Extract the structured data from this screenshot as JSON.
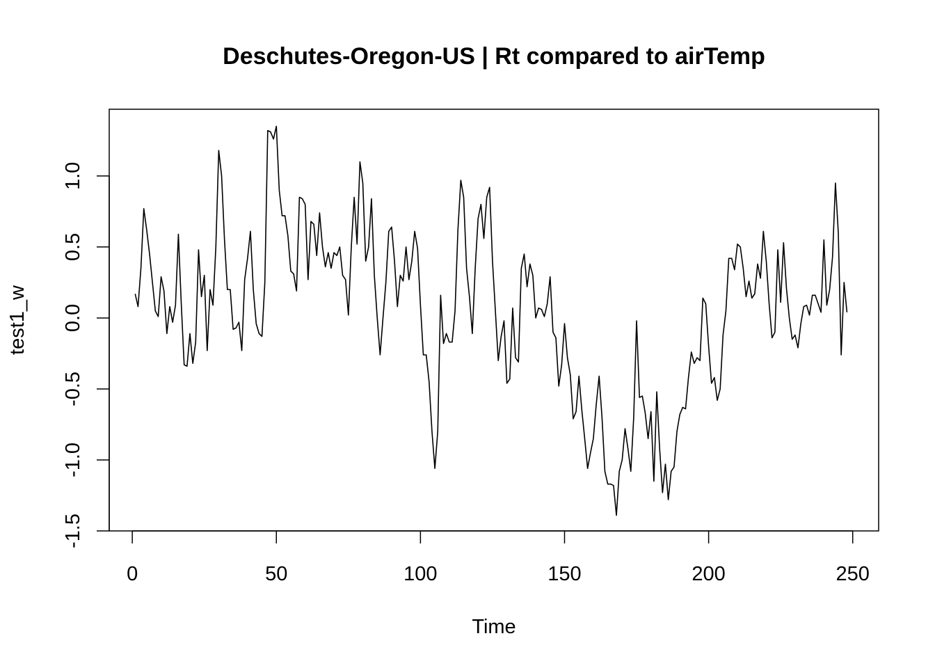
{
  "chart_data": {
    "type": "line",
    "title": "Deschutes-Oregon-US | Rt compared to airTemp",
    "xlabel": "Time",
    "ylabel": "test1_w",
    "xlim": [
      -8,
      259
    ],
    "ylim": [
      -1.5,
      1.47
    ],
    "xticks": [
      0,
      50,
      100,
      150,
      200,
      250
    ],
    "yticks": [
      -1.5,
      -1.0,
      -0.5,
      0.0,
      0.5,
      1.0
    ],
    "xtick_labels": [
      "0",
      "50",
      "100",
      "150",
      "200",
      "250"
    ],
    "ytick_labels": [
      "-1.5",
      "-1.0",
      "-0.5",
      "0.0",
      "0.5",
      "1.0"
    ],
    "grid": false,
    "line_color": "#000000",
    "series": [
      {
        "x": [
          1,
          2,
          3,
          4,
          5,
          6,
          7,
          8,
          9,
          10,
          11,
          12,
          13,
          14,
          15,
          16,
          17,
          18,
          19,
          20,
          21,
          22,
          23,
          24,
          25,
          26,
          27,
          28,
          29,
          30,
          31,
          32,
          33,
          34,
          35,
          36,
          37,
          38,
          39,
          40,
          41,
          42,
          43,
          44,
          45,
          46,
          47,
          48,
          49,
          50,
          51,
          52,
          53,
          54,
          55,
          56,
          57,
          58,
          59,
          60,
          61,
          62,
          63,
          64,
          65,
          66,
          67,
          68,
          69,
          70,
          71,
          72,
          73,
          74,
          75,
          76,
          77,
          78,
          79,
          80,
          81,
          82,
          83,
          84,
          85,
          86,
          87,
          88,
          89,
          90,
          91,
          92,
          93,
          94,
          95,
          96,
          97,
          98,
          99,
          100,
          101,
          102,
          103,
          104,
          105,
          106,
          107,
          108,
          109,
          110,
          111,
          112,
          113,
          114,
          115,
          116,
          117,
          118,
          119,
          120,
          121,
          122,
          123,
          124,
          125,
          126,
          127,
          128,
          129,
          130,
          131,
          132,
          133,
          134,
          135,
          136,
          137,
          138,
          139,
          140,
          141,
          142,
          143,
          144,
          145,
          146,
          147,
          148,
          149,
          150,
          151,
          152,
          153,
          154,
          155,
          156,
          157,
          158,
          159,
          160,
          161,
          162,
          163,
          164,
          165,
          166,
          167,
          168,
          169,
          170,
          171,
          172,
          173,
          174,
          175,
          176,
          177,
          178,
          179,
          180,
          181,
          182,
          183,
          184,
          185,
          186,
          187,
          188,
          189,
          190,
          191,
          192,
          193,
          194,
          195,
          196,
          197,
          198,
          199,
          200,
          201,
          202,
          203,
          204,
          205,
          206,
          207,
          208,
          209,
          210,
          211,
          212,
          213,
          214,
          215,
          216,
          217,
          218,
          219,
          220,
          221,
          222,
          223,
          224,
          225,
          226,
          227,
          228,
          229,
          230,
          231,
          232,
          233,
          234,
          235,
          236,
          237,
          238,
          239,
          240,
          241,
          242,
          243,
          244,
          245,
          246,
          247,
          248
        ],
        "y": [
          0.17,
          0.08,
          0.35,
          0.77,
          0.62,
          0.45,
          0.25,
          0.05,
          0.01,
          0.29,
          0.19,
          -0.11,
          0.08,
          -0.03,
          0.09,
          0.59,
          0.1,
          -0.33,
          -0.34,
          -0.11,
          -0.32,
          -0.17,
          0.48,
          0.15,
          0.3,
          -0.23,
          0.2,
          0.09,
          0.5,
          1.18,
          1.0,
          0.55,
          0.2,
          0.2,
          -0.08,
          -0.07,
          -0.03,
          -0.23,
          0.27,
          0.42,
          0.61,
          0.2,
          -0.04,
          -0.11,
          -0.13,
          0.25,
          1.32,
          1.31,
          1.26,
          1.35,
          0.9,
          0.72,
          0.72,
          0.58,
          0.33,
          0.31,
          0.19,
          0.85,
          0.84,
          0.8,
          0.27,
          0.68,
          0.66,
          0.44,
          0.74,
          0.5,
          0.36,
          0.46,
          0.35,
          0.46,
          0.44,
          0.5,
          0.3,
          0.27,
          0.02,
          0.5,
          0.85,
          0.52,
          1.1,
          0.95,
          0.4,
          0.5,
          0.84,
          0.3,
          0.0,
          -0.26,
          0.0,
          0.25,
          0.61,
          0.64,
          0.4,
          0.08,
          0.3,
          0.26,
          0.5,
          0.27,
          0.4,
          0.61,
          0.49,
          0.09,
          -0.26,
          -0.26,
          -0.45,
          -0.8,
          -1.06,
          -0.8,
          0.16,
          -0.18,
          -0.11,
          -0.17,
          -0.17,
          0.05,
          0.62,
          0.97,
          0.85,
          0.35,
          0.15,
          -0.11,
          0.35,
          0.7,
          0.8,
          0.56,
          0.85,
          0.92,
          0.4,
          0.05,
          -0.3,
          -0.13,
          -0.02,
          -0.46,
          -0.43,
          0.07,
          -0.28,
          -0.31,
          0.35,
          0.45,
          0.22,
          0.38,
          0.3,
          0.0,
          0.07,
          0.06,
          0.01,
          0.1,
          0.29,
          -0.1,
          -0.14,
          -0.48,
          -0.33,
          -0.04,
          -0.28,
          -0.4,
          -0.71,
          -0.66,
          -0.41,
          -0.65,
          -0.85,
          -1.06,
          -0.95,
          -0.85,
          -0.61,
          -0.41,
          -0.7,
          -1.08,
          -1.17,
          -1.17,
          -1.18,
          -1.39,
          -1.08,
          -1.0,
          -0.78,
          -0.92,
          -1.08,
          -0.7,
          -0.02,
          -0.56,
          -0.55,
          -0.67,
          -0.85,
          -0.66,
          -1.15,
          -0.52,
          -0.92,
          -1.23,
          -1.03,
          -1.28,
          -1.08,
          -1.05,
          -0.8,
          -0.68,
          -0.63,
          -0.64,
          -0.42,
          -0.24,
          -0.32,
          -0.28,
          -0.3,
          0.14,
          0.1,
          -0.2,
          -0.46,
          -0.42,
          -0.58,
          -0.5,
          -0.12,
          0.05,
          0.42,
          0.42,
          0.34,
          0.52,
          0.5,
          0.35,
          0.15,
          0.26,
          0.14,
          0.17,
          0.38,
          0.28,
          0.61,
          0.4,
          0.1,
          -0.14,
          -0.1,
          0.48,
          0.11,
          0.53,
          0.21,
          0.0,
          -0.15,
          -0.12,
          -0.21,
          -0.04,
          0.08,
          0.09,
          0.02,
          0.16,
          0.16,
          0.1,
          0.04,
          0.55,
          0.09,
          0.2,
          0.43,
          0.95,
          0.6,
          -0.26,
          0.25,
          0.04
        ]
      }
    ]
  }
}
